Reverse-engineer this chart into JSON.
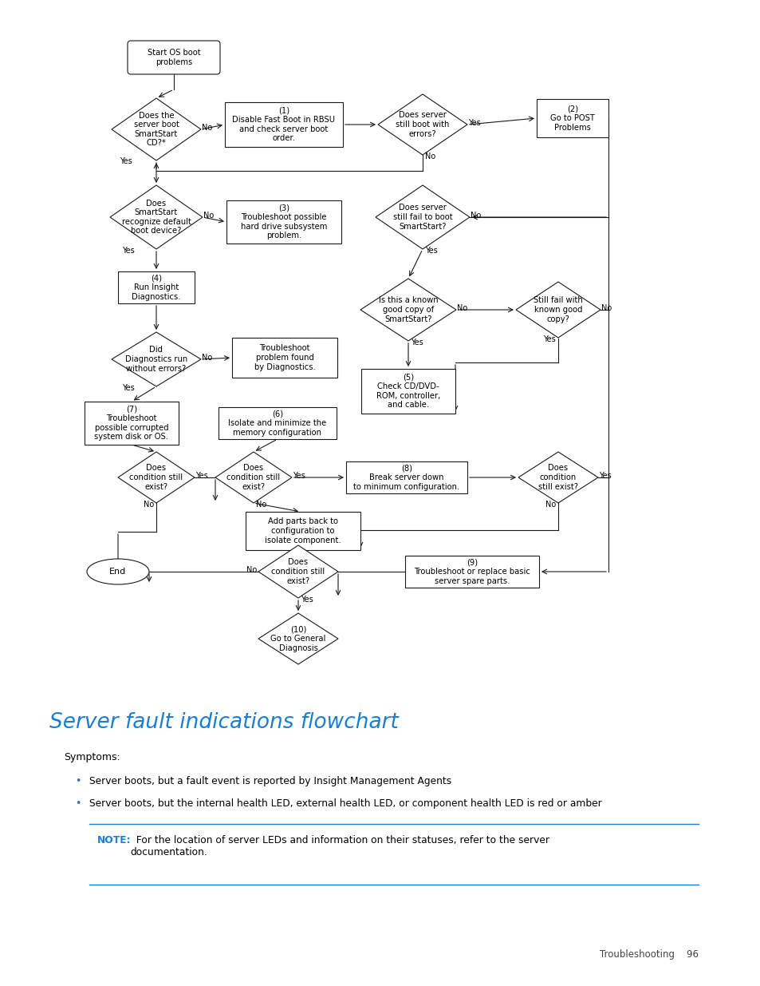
{
  "title": "Server fault indications flowchart",
  "title_color": "#1a7fd4",
  "bg_color": "#ffffff",
  "text_color": "#000000",
  "symptoms_label": "Symptoms:",
  "bullets": [
    "Server boots, but a fault event is reported by Insight Management Agents",
    "Server boots, but the internal health LED, external health LED, or component health LED is red or amber"
  ],
  "note_label": "NOTE:",
  "note_text": "  For the location of server LEDs and information on their statuses, refer to the server\ndocumentation.",
  "footer": "Troubleshooting    96",
  "note_label_color": "#1a7fd4",
  "line_color": "#1a7fd4"
}
